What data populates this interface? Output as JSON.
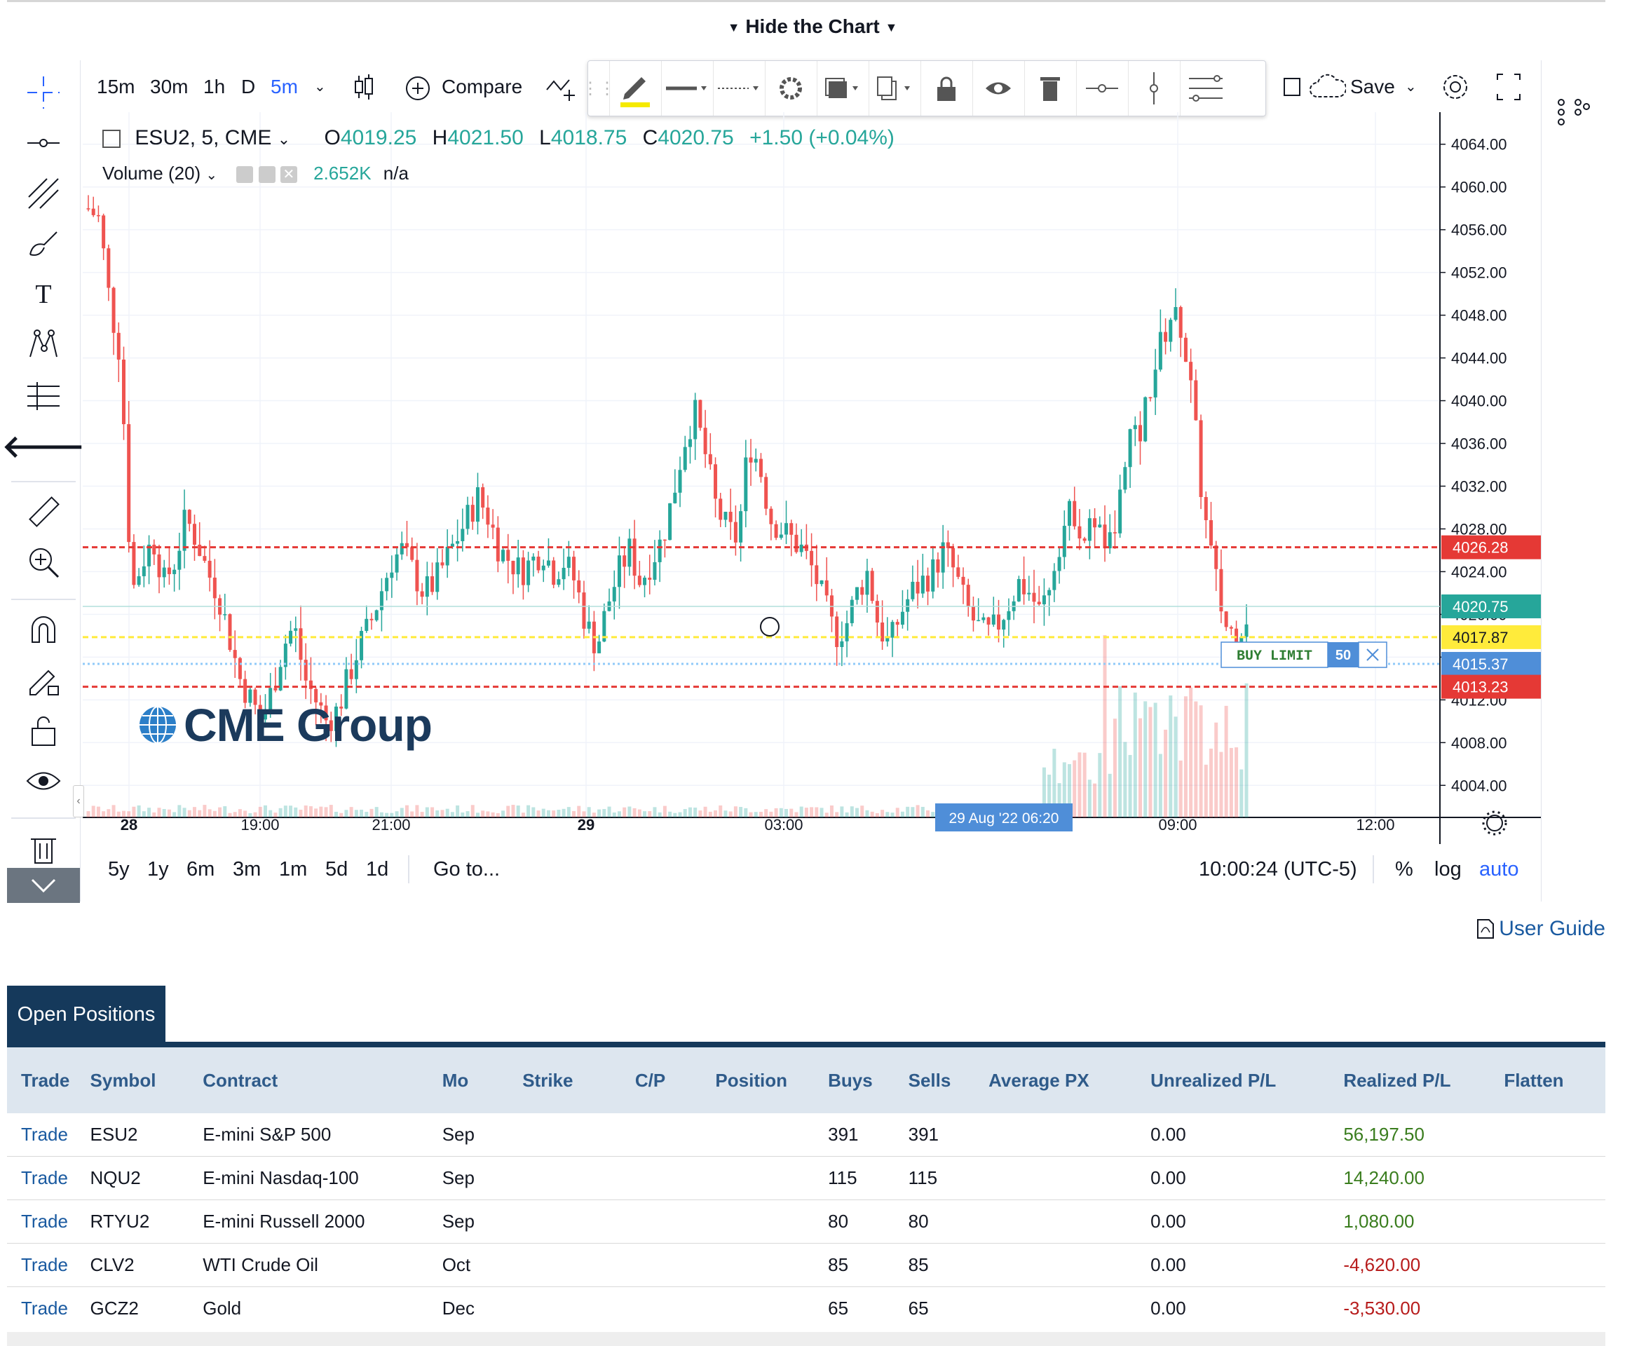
{
  "header": {
    "toggle_label": "Hide the Chart"
  },
  "top_toolbar": {
    "intervals": [
      "15m",
      "30m",
      "1h",
      "D",
      "5m"
    ],
    "active_interval": "5m",
    "compare_label": "Compare",
    "save_label": "Save"
  },
  "legend": {
    "symbol": "ESU2, 5, CME",
    "open_label": "O",
    "open": "4019.25",
    "high_label": "H",
    "high": "4021.50",
    "low_label": "L",
    "low": "4018.75",
    "close_label": "C",
    "close": "4020.75",
    "change": "+1.50 (+0.04%)",
    "volume_label": "Volume (20)",
    "volume_value": "2.652K",
    "volume_na": "n/a"
  },
  "price_axis": {
    "ticks": [
      "4064.00",
      "4060.00",
      "4056.00",
      "4052.00",
      "4048.00",
      "4044.00",
      "4040.00",
      "4036.00",
      "4032.00",
      "4028.00",
      "4024.00",
      "4020.00",
      "4016.00",
      "4012.00",
      "4008.00",
      "4004.00"
    ],
    "tags": [
      {
        "label": "4026.28",
        "color": "#e53935"
      },
      {
        "label": "4020.75",
        "color": "#26a69a"
      },
      {
        "label": "4017.87",
        "color": "#ffeb3b"
      },
      {
        "label": "4015.37",
        "color": "#4f8ed8"
      },
      {
        "label": "4013.23",
        "color": "#e53935"
      }
    ]
  },
  "time_axis": {
    "ticks": [
      "28",
      "19:00",
      "21:00",
      "29",
      "03:00",
      "09:00",
      "12:00"
    ],
    "cursor_label": "29 Aug '22   06:20"
  },
  "order": {
    "type_label": "BUY LIMIT",
    "qty": "50"
  },
  "logo_text": "CME Group",
  "range_bar": {
    "ranges": [
      "5y",
      "1y",
      "6m",
      "3m",
      "1m",
      "5d",
      "1d"
    ],
    "goto_label": "Go to...",
    "clock": "10:00:24 (UTC-5)",
    "percent_label": "%",
    "log_label": "log",
    "auto_label": "auto"
  },
  "user_guide_label": "User Guide",
  "positions": {
    "tab_label": "Open Positions",
    "columns": [
      "Trade",
      "Symbol",
      "Contract",
      "Mo",
      "Strike",
      "C/P",
      "Position",
      "Buys",
      "Sells",
      "Average PX",
      "Unrealized P/L",
      "Realized P/L",
      "Flatten"
    ],
    "rows": [
      {
        "trade": "Trade",
        "symbol": "ESU2",
        "contract": "E-mini S&P 500",
        "mo": "Sep",
        "buys": "391",
        "sells": "391",
        "unrealized": "0.00",
        "realized": "56,197.50",
        "realized_color": "#3a7d1e"
      },
      {
        "trade": "Trade",
        "symbol": "NQU2",
        "contract": "E-mini Nasdaq-100",
        "mo": "Sep",
        "buys": "115",
        "sells": "115",
        "unrealized": "0.00",
        "realized": "14,240.00",
        "realized_color": "#3a7d1e"
      },
      {
        "trade": "Trade",
        "symbol": "RTYU2",
        "contract": "E-mini Russell 2000",
        "mo": "Sep",
        "buys": "80",
        "sells": "80",
        "unrealized": "0.00",
        "realized": "1,080.00",
        "realized_color": "#3a7d1e"
      },
      {
        "trade": "Trade",
        "symbol": "CLV2",
        "contract": "WTI Crude Oil",
        "mo": "Oct",
        "buys": "85",
        "sells": "85",
        "unrealized": "0.00",
        "realized": "-4,620.00",
        "realized_color": "#b71c1c"
      },
      {
        "trade": "Trade",
        "symbol": "GCZ2",
        "contract": "Gold",
        "mo": "Dec",
        "buys": "65",
        "sells": "65",
        "unrealized": "0.00",
        "realized": "-3,530.00",
        "realized_color": "#b71c1c"
      }
    ]
  },
  "chart_data": {
    "type": "candlestick",
    "symbol": "ESU2",
    "interval": "5m",
    "ylim": [
      4001,
      4067
    ],
    "levels": [
      {
        "price": 4026.28,
        "style": "dashed",
        "color": "#e53935"
      },
      {
        "price": 4020.75,
        "style": "solid",
        "color": "#b2dfdb"
      },
      {
        "price": 4017.87,
        "style": "dashed",
        "color": "#ffeb3b"
      },
      {
        "price": 4015.37,
        "style": "dotted",
        "color": "#90caf9"
      },
      {
        "price": 4013.23,
        "style": "dashed",
        "color": "#e53935"
      }
    ],
    "close_path": [
      4058,
      4057,
      4049,
      4044,
      4022,
      4025,
      4027,
      4023,
      4025,
      4029,
      4027,
      4024,
      4022,
      4018,
      4014,
      4012,
      4010,
      4013,
      4017,
      4019,
      4014,
      4012,
      4010,
      4011,
      4014,
      4017,
      4019,
      4022,
      4025,
      4026,
      4024,
      4022,
      4023,
      4025,
      4027,
      4029,
      4031,
      4029,
      4026,
      4025,
      4024,
      4025,
      4026,
      4024,
      4025,
      4023,
      4019,
      4017,
      4021,
      4024,
      4026,
      4023,
      4025,
      4027,
      4031,
      4036,
      4039,
      4035,
      4030,
      4028,
      4027,
      4036,
      4034,
      4029,
      4028,
      4027,
      4026,
      4024,
      4021,
      4018,
      4019,
      4022,
      4024,
      4019,
      4017,
      4020,
      4022,
      4023,
      4024,
      4026,
      4024,
      4021,
      4019,
      4018,
      4019,
      4021,
      4023,
      4022,
      4020,
      4024,
      4028,
      4030,
      4027,
      4029,
      4026,
      4028,
      4037,
      4036,
      4041,
      4045,
      4048,
      4047,
      4040,
      4030,
      4024,
      4019,
      4018,
      4020
    ]
  }
}
